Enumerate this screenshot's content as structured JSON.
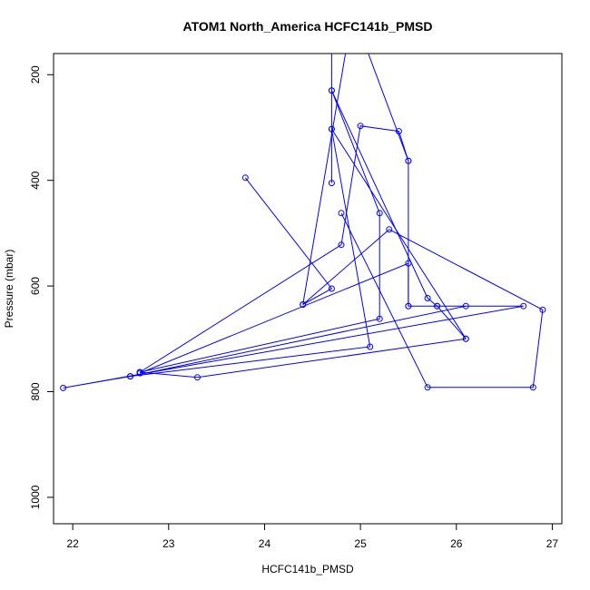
{
  "chart_data": {
    "type": "line",
    "title": "ATOM1 North_America HCFC141b_PMSD",
    "xlabel": "HCFC141b_PMSD",
    "ylabel": "Pressure (mbar)",
    "xlim": [
      21.8,
      27.1
    ],
    "ylim": [
      1050,
      160
    ],
    "y_inverted": true,
    "x_ticks": [
      22,
      23,
      24,
      25,
      26,
      27
    ],
    "y_ticks": [
      200,
      400,
      600,
      800,
      1000
    ],
    "grid": false,
    "legend": "none",
    "line_color": "#0000ff",
    "marker": "open-circle",
    "series": [
      {
        "points": [
          {
            "x": 24.7,
            "y": 100,
            "marker": false
          },
          {
            "x": 24.7,
            "y": 230
          },
          {
            "x": 25.2,
            "y": 462
          },
          {
            "x": 25.2,
            "y": 662
          },
          {
            "x": 22.7,
            "y": 763
          },
          {
            "x": 24.8,
            "y": 522
          },
          {
            "x": 25.0,
            "y": 297
          },
          {
            "x": 25.4,
            "y": 307
          },
          {
            "x": 25.5,
            "y": 363
          },
          {
            "x": 25.5,
            "y": 638
          },
          {
            "x": 26.7,
            "y": 638
          },
          {
            "x": 21.9,
            "y": 793
          },
          {
            "x": 22.6,
            "y": 771
          },
          {
            "x": 26.1,
            "y": 638
          },
          {
            "x": 25.8,
            "y": 638
          },
          {
            "x": 26.1,
            "y": 700
          },
          {
            "x": 24.7,
            "y": 303
          },
          {
            "x": 24.7,
            "y": 405
          },
          {
            "x": 24.7,
            "y": 100,
            "marker": false
          }
        ]
      },
      {
        "points": [
          {
            "x": 25.2,
            "y": 100,
            "marker": false
          },
          {
            "x": 24.7,
            "y": 100,
            "marker": false
          }
        ]
      },
      {
        "points": [
          {
            "x": 25.0,
            "y": 120,
            "marker": false
          },
          {
            "x": 25.5,
            "y": 363
          }
        ]
      },
      {
        "points": [
          {
            "x": 24.7,
            "y": 230
          },
          {
            "x": 25.7,
            "y": 623
          },
          {
            "x": 25.8,
            "y": 638
          }
        ]
      },
      {
        "points": [
          {
            "x": 23.8,
            "y": 395
          },
          {
            "x": 24.7,
            "y": 605
          },
          {
            "x": 24.4,
            "y": 635
          },
          {
            "x": 25.3,
            "y": 493
          },
          {
            "x": 26.9,
            "y": 645
          },
          {
            "x": 26.8,
            "y": 792
          },
          {
            "x": 25.7,
            "y": 792
          },
          {
            "x": 24.8,
            "y": 462
          }
        ]
      },
      {
        "points": [
          {
            "x": 24.4,
            "y": 635
          },
          {
            "x": 24.9,
            "y": 100,
            "marker": false
          }
        ]
      },
      {
        "points": [
          {
            "x": 22.7,
            "y": 765
          },
          {
            "x": 25.5,
            "y": 557
          },
          {
            "x": 25.5,
            "y": 638
          }
        ]
      },
      {
        "points": [
          {
            "x": 22.7,
            "y": 763
          },
          {
            "x": 23.3,
            "y": 773
          },
          {
            "x": 26.1,
            "y": 700
          }
        ]
      },
      {
        "points": [
          {
            "x": 22.6,
            "y": 771
          },
          {
            "x": 25.1,
            "y": 715
          },
          {
            "x": 24.7,
            "y": 303
          }
        ]
      }
    ]
  }
}
